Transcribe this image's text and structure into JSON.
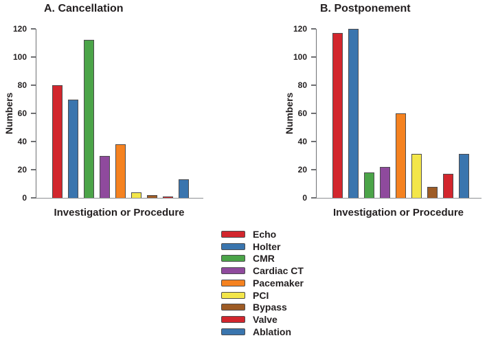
{
  "figure": {
    "background": "#ffffff",
    "text_color": "#231f20",
    "axis_color": "#6e6f72"
  },
  "chart_data": [
    {
      "type": "bar",
      "title": "A. Cancellation",
      "xlabel": "Investigation or Procedure",
      "ylabel": "Numbers",
      "ylim": [
        0,
        120
      ],
      "yticks": [
        0,
        20,
        40,
        60,
        80,
        100,
        120
      ],
      "grid": false,
      "legend_position": "shared-bottom",
      "categories": [
        "Echo",
        "Holter",
        "CMR",
        "Cardiac CT",
        "Pacemaker",
        "PCI",
        "Bypass",
        "Valve",
        "Ablation"
      ],
      "values": [
        80,
        70,
        112,
        30,
        38,
        4,
        2,
        1,
        13
      ],
      "bar_colors": [
        "#d2262d",
        "#3a75ae",
        "#4ba448",
        "#8f4a9d",
        "#f58220",
        "#f3e64a",
        "#9d5b25",
        "#d2262d",
        "#3a75ae"
      ]
    },
    {
      "type": "bar",
      "title": "B. Postponement",
      "xlabel": "Investigation or Procedure",
      "ylabel": "Numbers",
      "ylim": [
        0,
        120
      ],
      "yticks": [
        0,
        20,
        40,
        60,
        80,
        100,
        120
      ],
      "grid": false,
      "legend_position": "shared-bottom",
      "categories": [
        "Echo",
        "Holter",
        "CMR",
        "Cardiac CT",
        "Pacemaker",
        "PCI",
        "Bypass",
        "Valve",
        "Ablation"
      ],
      "values": [
        117,
        120,
        18,
        22,
        60,
        31,
        8,
        17,
        31
      ],
      "bar_colors": [
        "#d2262d",
        "#3a75ae",
        "#4ba448",
        "#8f4a9d",
        "#f58220",
        "#f3e64a",
        "#9d5b25",
        "#d2262d",
        "#3a75ae"
      ]
    }
  ],
  "legend": {
    "position": "bottom-center",
    "entries": [
      {
        "label": "Echo",
        "color": "#d2262d"
      },
      {
        "label": "Holter",
        "color": "#3a75ae"
      },
      {
        "label": "CMR",
        "color": "#4ba448"
      },
      {
        "label": "Cardiac CT",
        "color": "#8f4a9d"
      },
      {
        "label": "Pacemaker",
        "color": "#f58220"
      },
      {
        "label": "PCI",
        "color": "#f3e64a"
      },
      {
        "label": "Bypass",
        "color": "#9d5b25"
      },
      {
        "label": "Valve",
        "color": "#d2262d"
      },
      {
        "label": "Ablation",
        "color": "#3a75ae"
      }
    ]
  }
}
